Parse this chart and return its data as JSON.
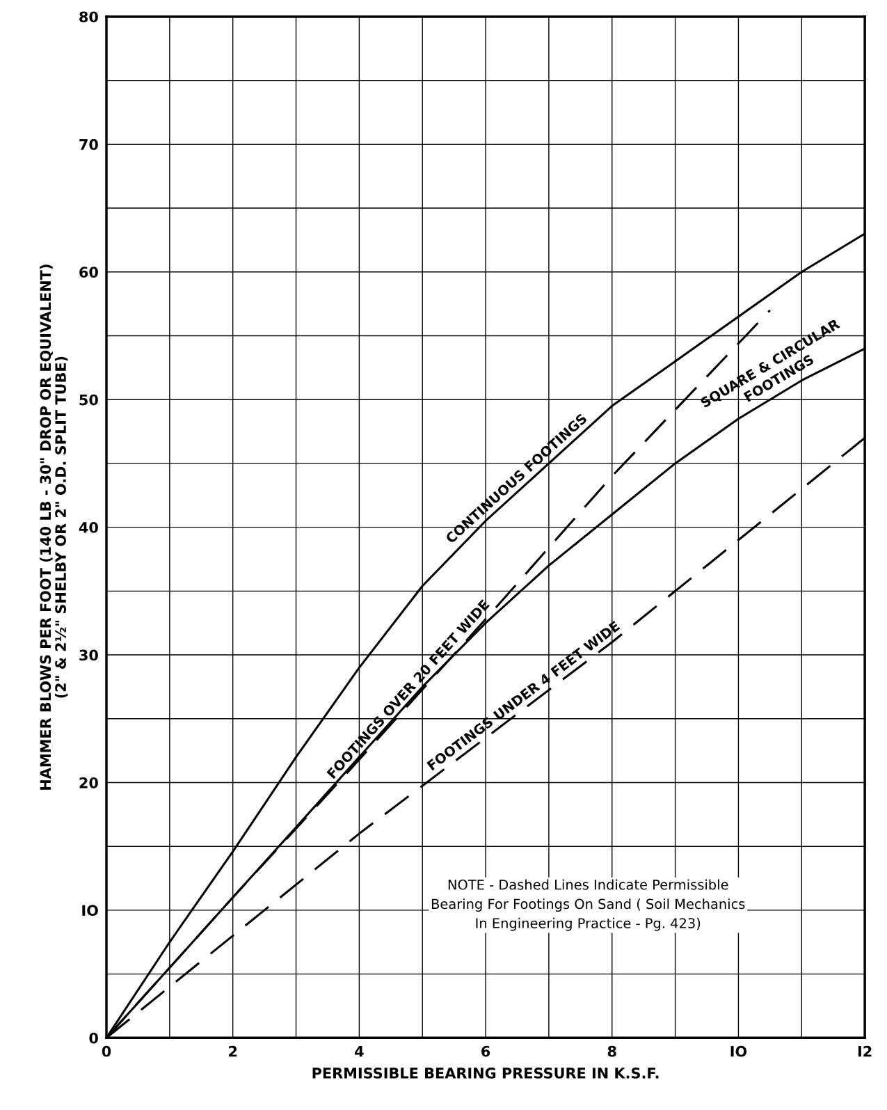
{
  "chart_data": {
    "type": "line",
    "xlabel": "PERMISSIBLE BEARING PRESSURE IN K.S.F.",
    "ylabel": "HAMMER BLOWS PER FOOT (140 LB - 30\" DROP OR EQUIVALENT)\n(2\" & 2½\" SHELBY OR 2\" O.D. SPLIT TUBE)",
    "xlim": [
      0,
      12
    ],
    "ylim": [
      0,
      80
    ],
    "xticks": [
      0,
      {
        "value": 1,
        "label": null
      },
      2,
      {
        "value": 3,
        "label": null
      },
      4,
      {
        "value": 5,
        "label": null
      },
      6,
      {
        "value": 7,
        "label": null
      },
      8,
      {
        "value": 9,
        "label": null
      },
      {
        "value": 10,
        "label": "IO"
      },
      {
        "value": 11,
        "label": null
      },
      {
        "value": 12,
        "label": "I2"
      }
    ],
    "yticks": [
      0,
      {
        "value": 5,
        "label": null
      },
      {
        "value": 10,
        "label": "IO"
      },
      {
        "value": 15,
        "label": null
      },
      20,
      {
        "value": 25,
        "label": null
      },
      30,
      {
        "value": 35,
        "label": null
      },
      40,
      {
        "value": 45,
        "label": null
      },
      50,
      {
        "value": 55,
        "label": null
      },
      60,
      {
        "value": 65,
        "label": null
      },
      70,
      {
        "value": 75,
        "label": null
      },
      80
    ],
    "grid": true,
    "marker": "none",
    "series": [
      {
        "name": "CONTINUOUS FOOTINGS",
        "color": "#000000",
        "line_style": "solid",
        "x": [
          0,
          1,
          2,
          3,
          4,
          5,
          6,
          7,
          8,
          9,
          10,
          11,
          12
        ],
        "values": [
          0,
          7.5,
          14.6,
          22,
          29,
          35.4,
          40.5,
          45,
          49.5,
          53,
          56.5,
          60,
          63
        ]
      },
      {
        "name": "SQUARE & CIRCULAR\nFOOTINGS",
        "color": "#000000",
        "line_style": "solid",
        "x": [
          0,
          1,
          2,
          3,
          4,
          5,
          6,
          7,
          8,
          9,
          10,
          11,
          12
        ],
        "values": [
          0,
          5.5,
          11,
          16.5,
          22,
          27.5,
          32.5,
          37,
          41,
          45,
          48.5,
          51.5,
          54
        ]
      },
      {
        "name": "FOOTINGS OVER 20 FEET WIDE",
        "color": "#000000",
        "line_style": "dashed",
        "x": [
          0,
          2,
          4,
          6,
          8,
          10.5
        ],
        "values": [
          0,
          11,
          21.8,
          32.8,
          44,
          57
        ]
      },
      {
        "name": "FOOTINGS UNDER 4 FEET WIDE",
        "color": "#000000",
        "line_style": "dashed",
        "x": [
          0,
          1,
          2,
          4,
          6,
          8,
          10,
          12
        ],
        "values": [
          0,
          4,
          8,
          16,
          23.5,
          31,
          39,
          47
        ]
      }
    ],
    "annotations": [
      "NOTE - Dashed Lines Indicate Permissible\nBearing For Footings On Sand ( Soil Mechanics\nIn Engineering Practice - Pg. 423)"
    ]
  }
}
